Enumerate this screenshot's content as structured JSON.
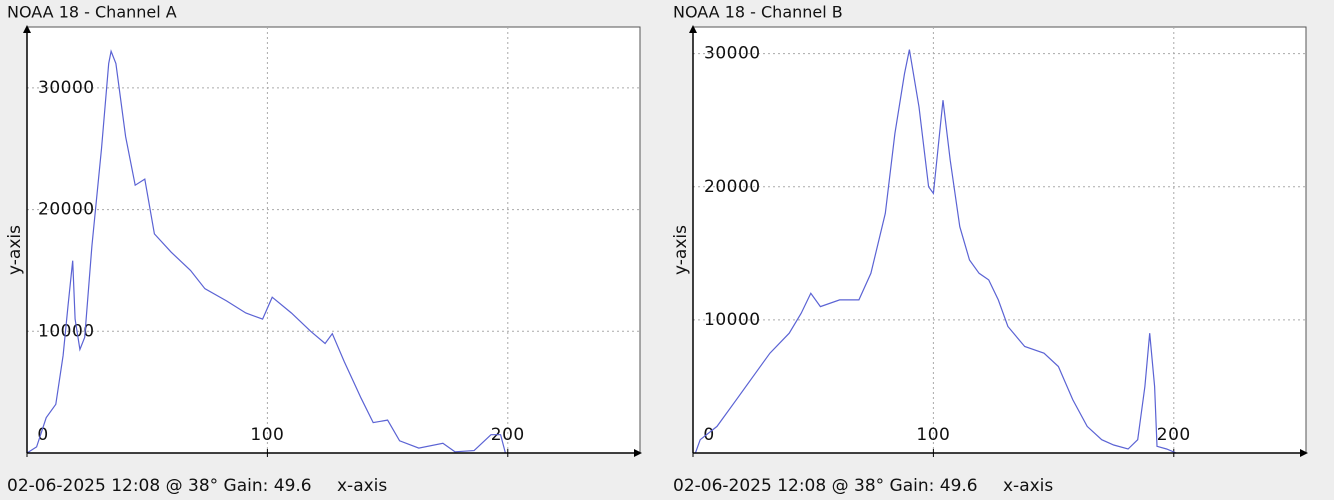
{
  "chart_data": [
    {
      "type": "line",
      "title": "NOAA 18 - Channel A",
      "x_label": "x-axis",
      "y_label": "y-axis",
      "footer": "02-06-2025 12:08 @ 38° Gain: 49.6",
      "x": [
        0,
        4,
        8,
        12,
        15,
        17,
        19,
        20,
        22,
        24,
        27,
        31,
        34,
        35,
        37,
        41,
        45,
        49,
        53,
        60,
        68,
        74,
        83,
        91,
        98,
        102,
        110,
        118,
        124,
        127,
        132,
        139,
        144,
        150,
        155,
        163,
        173,
        178,
        186,
        193,
        197,
        199
      ],
      "series": [
        {
          "color": "#5b63d4",
          "values": [
            0,
            500,
            2900,
            4000,
            8000,
            12000,
            15800,
            11000,
            8500,
            9500,
            17000,
            25000,
            32000,
            33000,
            32000,
            26000,
            22000,
            22500,
            18000,
            16500,
            15000,
            13500,
            12500,
            11500,
            11000,
            12800,
            11500,
            10000,
            9000,
            9800,
            7500,
            4500,
            2500,
            2700,
            1000,
            400,
            800,
            100,
            200,
            1500,
            1500,
            0
          ]
        }
      ],
      "xlim": [
        0,
        255
      ],
      "ylim": [
        0,
        35000
      ],
      "xticks": [
        0,
        100,
        200
      ],
      "yticks": [
        10000,
        20000,
        30000
      ],
      "grid": true
    },
    {
      "type": "line",
      "title": "NOAA 18 - Channel B",
      "x_label": "x-axis",
      "y_label": "y-axis",
      "footer": "02-06-2025 12:08 @ 38° Gain: 49.6",
      "x": [
        1,
        3,
        10,
        18,
        24,
        32,
        40,
        45,
        49,
        53,
        61,
        69,
        74,
        80,
        84,
        88,
        90,
        94,
        98,
        100,
        104,
        107,
        111,
        115,
        119,
        123,
        127,
        131,
        138,
        146,
        152,
        158,
        164,
        170,
        175,
        181,
        185,
        188,
        190,
        192,
        193,
        197,
        201
      ],
      "series": [
        {
          "color": "#5b63d4",
          "values": [
            0,
            1000,
            2000,
            4000,
            5500,
            7500,
            9000,
            10500,
            12000,
            11000,
            11500,
            11500,
            13500,
            18000,
            24000,
            28500,
            30300,
            26000,
            20000,
            19500,
            26500,
            22000,
            17000,
            14500,
            13500,
            13000,
            11500,
            9500,
            8000,
            7500,
            6500,
            4000,
            2000,
            1000,
            600,
            300,
            1000,
            5000,
            9000,
            5000,
            500,
            300,
            0
          ]
        }
      ],
      "xlim": [
        0,
        255
      ],
      "ylim": [
        0,
        32000
      ],
      "xticks": [
        0,
        100,
        200
      ],
      "yticks": [
        10000,
        20000,
        30000
      ],
      "grid": true
    }
  ]
}
